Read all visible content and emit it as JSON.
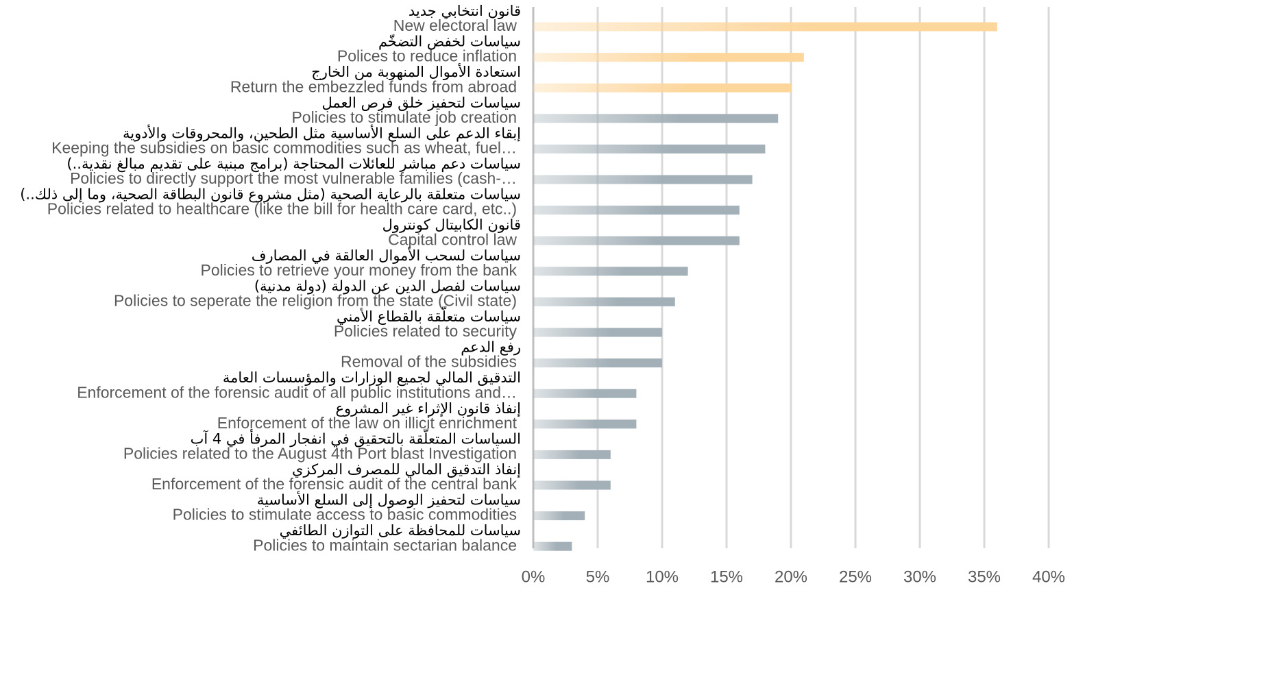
{
  "chart_data": {
    "type": "hbar",
    "categories": [
      "New electoral law",
      "Polices to reduce inflation",
      "Return the embezzled funds from abroad",
      "Policies to stimulate job creation",
      "Keeping the subsidies on basic commodities such as wheat, fuel…",
      "Policies to directly support the most vulnerable families (cash-…",
      "Policies related to healthcare (like the bill for health care card, etc..)",
      "Capital control law",
      "Policies to retrieve your money from the bank",
      "Policies to seperate the religion from the state (Civil state)",
      "Policies related to security",
      "Removal of the subsidies",
      "Enforcement of the forensic audit of all public institutions and…",
      "Enforcement of the law on illicit enrichment",
      "Policies related to the August 4th Port blast Investigation",
      "Enforcement of the forensic audit of the central bank",
      "Policies to stimulate access to basic commodities",
      "Policies to maintain sectarian balance"
    ],
    "arabic_labels": [
      "قانون انتخابي جديد",
      "سياسات لخفض التضخّم",
      "استعادة الأموال المنهوبة من الخارج",
      "سياسات لتحفيز خلق فرص العمل",
      "إبقاء الدعم على السلع الأساسية مثل الطحين، والمحروقات والأدوية",
      "سياسات دعم مباشر للعائلات المحتاجة (برامج مبنية على تقديم مبالغ نقدية..)",
      "سياسات متعلقة بالرعاية الصحية (مثل مشروع قانون البطاقة الصحية، وما إلى ذلك..)",
      "قانون الكابيتال كونترول",
      "سياسات لسحب الأموال العالقة في المصارف",
      "سياسات لفصل الدين عن الدولة (دولة مدنية)",
      "سياسات متعلّقة بالقطاع الأمني",
      "رفع الدعم",
      "التدقيق المالي لجميع الوزارات والمؤسسات العامة",
      "إنفاذ قانون الإثراء غير المشروع",
      "السياسات المتعلّقة بالتحقيق في انفجار المرفأ في 4 آب",
      "إنفاذ التدقيق المالي للمصرف المركزي",
      "سياسات لتحفيز الوصول إلى السلع الأساسية",
      "سياسات للمحافظة على التوازن الطائفي"
    ],
    "values": [
      36,
      21,
      20,
      19,
      18,
      17,
      16,
      16,
      12,
      11,
      10,
      10,
      8,
      8,
      6,
      6,
      4,
      3
    ],
    "colors": [
      "#fdd69c",
      "#fdd69c",
      "#fdd69c",
      "#a3b0b7",
      "#a3b0b7",
      "#a3b0b7",
      "#a3b0b7",
      "#a3b0b7",
      "#a3b0b7",
      "#a3b0b7",
      "#a3b0b7",
      "#a3b0b7",
      "#a3b0b7",
      "#a3b0b7",
      "#a3b0b7",
      "#a3b0b7",
      "#a3b0b7",
      "#a3b0b7"
    ],
    "xlim": [
      0,
      40
    ],
    "xticks": [
      {
        "value": 0,
        "label": "0%"
      },
      {
        "value": 5,
        "label": "5%"
      },
      {
        "value": 10,
        "label": "10%"
      },
      {
        "value": 15,
        "label": "15%"
      },
      {
        "value": 20,
        "label": "20%"
      },
      {
        "value": 25,
        "label": "25%"
      },
      {
        "value": 30,
        "label": "30%"
      },
      {
        "value": 35,
        "label": "35%"
      },
      {
        "value": 40,
        "label": "40%"
      }
    ],
    "grid": true
  }
}
